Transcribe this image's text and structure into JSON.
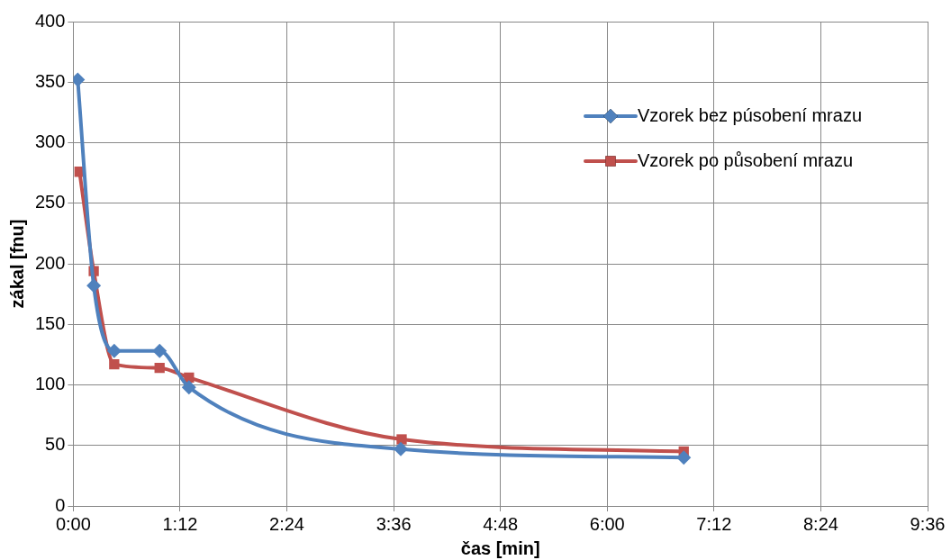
{
  "chart_data": {
    "type": "line",
    "xlabel": "čas [min]",
    "ylabel": "zákal [fnu]",
    "xlim": [
      0,
      9.6
    ],
    "ylim": [
      0,
      400
    ],
    "xticks": [
      {
        "value": 0,
        "label": "0:00"
      },
      {
        "value": 1.2,
        "label": "1:12"
      },
      {
        "value": 2.4,
        "label": "2:24"
      },
      {
        "value": 3.6,
        "label": "3:36"
      },
      {
        "value": 4.8,
        "label": "4:48"
      },
      {
        "value": 6,
        "label": "6:00"
      },
      {
        "value": 7.2,
        "label": "7:12"
      },
      {
        "value": 8.4,
        "label": "8:24"
      },
      {
        "value": 9.6,
        "label": "9:36"
      }
    ],
    "yticks": [
      0,
      50,
      100,
      150,
      200,
      250,
      300,
      350,
      400
    ],
    "grid": true,
    "legend": "top right",
    "series": [
      {
        "name": "Vzorek bez púsobení mrazu",
        "color": "#4f81bd",
        "marker": "diamond",
        "x": [
          0.05,
          0.23,
          0.46,
          0.97,
          1.3,
          3.68,
          6.86
        ],
        "values": [
          352,
          182,
          128,
          128,
          98,
          47,
          40
        ]
      },
      {
        "name": "Vzorek po působení mrazu",
        "color": "#c0504d",
        "marker": "square",
        "x": [
          0.07,
          0.23,
          0.46,
          0.97,
          1.3,
          3.69,
          6.86
        ],
        "values": [
          276,
          194,
          117,
          114,
          106,
          55,
          45
        ]
      }
    ]
  }
}
